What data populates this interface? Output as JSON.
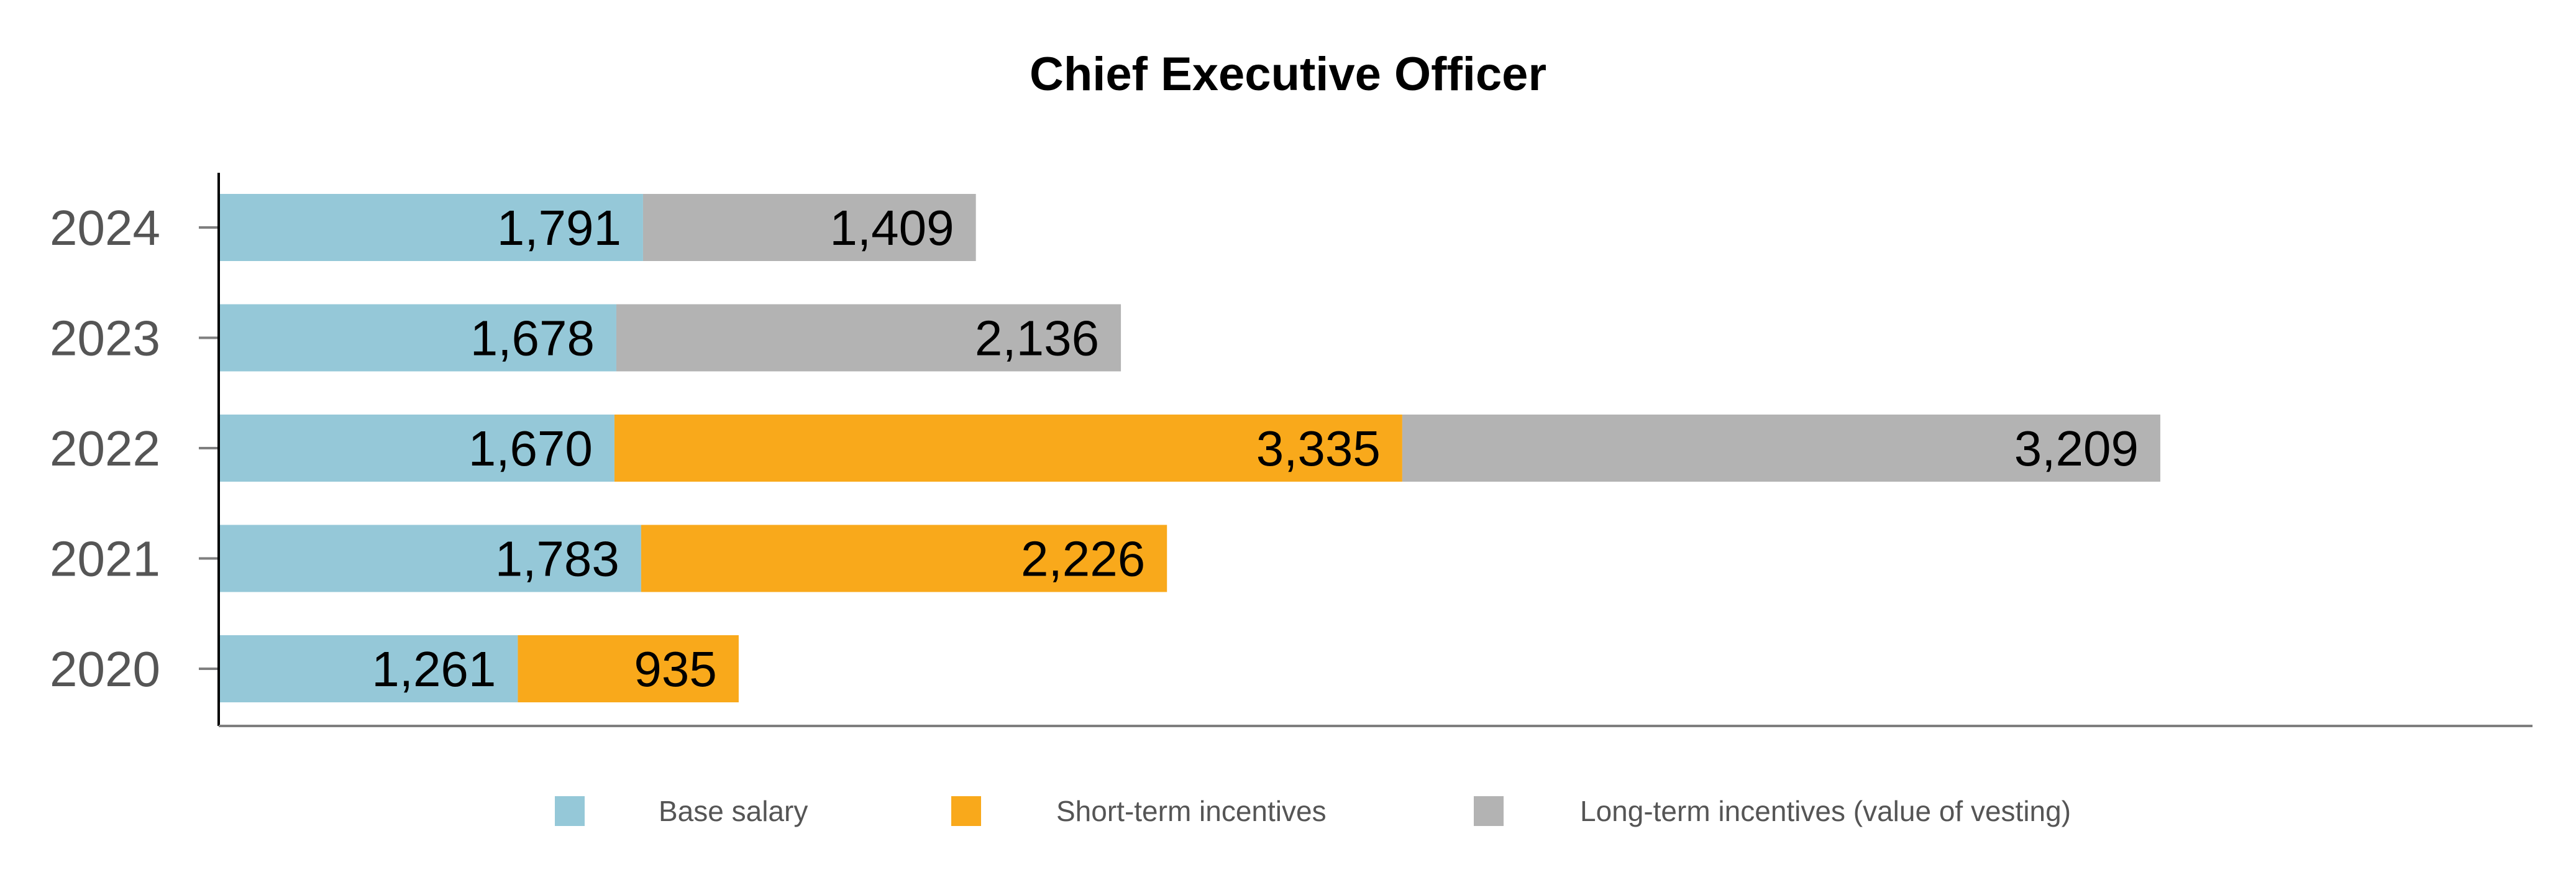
{
  "chart_data": {
    "type": "bar",
    "orientation": "horizontal",
    "stacked": true,
    "title": "Chief Executive Officer",
    "xlabel": "",
    "ylabel": "",
    "categories": [
      "2024",
      "2023",
      "2022",
      "2021",
      "2020"
    ],
    "series": [
      {
        "name": "Base salary",
        "color": "#95c8d8",
        "values": [
          1791,
          1678,
          1670,
          1783,
          1261
        ],
        "labels": [
          "1,791",
          "1,678",
          "1,670",
          "1,783",
          "1,261"
        ]
      },
      {
        "name": "Short-term incentives",
        "color": "#f9a91b",
        "values": [
          0,
          0,
          3335,
          2226,
          935
        ],
        "labels": [
          "",
          "",
          "3,335",
          "2,226",
          "935"
        ]
      },
      {
        "name": "Long-term incentives (value of vesting)",
        "color": "#b3b3b3",
        "values": [
          1409,
          2136,
          3209,
          0,
          0
        ],
        "labels": [
          "1,409",
          "2,136",
          "3,209",
          "",
          ""
        ]
      }
    ],
    "xlim": [
      0,
      9000
    ],
    "grid": false,
    "legend_position": "bottom"
  }
}
